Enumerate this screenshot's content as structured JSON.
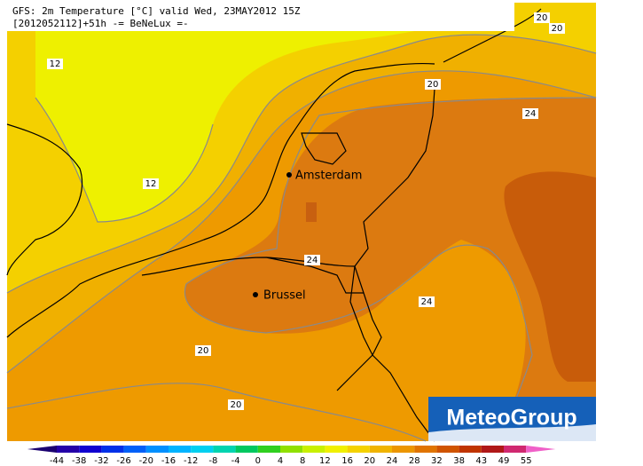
{
  "header": {
    "line1": "GFS: 2m Temperature [°C] valid Wed, 23MAY2012 15Z",
    "line2": "[2012052112]+51h -= BeNeLux =-"
  },
  "contour_labels": [
    12,
    12,
    20,
    24,
    24,
    24,
    20,
    20,
    20,
    20
  ],
  "cities": [
    "Amsterdam",
    "Brussel"
  ],
  "logo": "MeteoGroup",
  "legend": {
    "ticks": [
      -44,
      -38,
      -32,
      -26,
      -20,
      -16,
      -12,
      -8,
      -4,
      0,
      4,
      8,
      12,
      16,
      20,
      24,
      28,
      32,
      38,
      43,
      49,
      55
    ],
    "colors": [
      "#1a0070",
      "#2400a8",
      "#1000d0",
      "#0030e8",
      "#0060f8",
      "#0090ff",
      "#00b4ff",
      "#00d0f0",
      "#00d4b0",
      "#00c860",
      "#30d020",
      "#90e000",
      "#c8f000",
      "#f0f000",
      "#f4d200",
      "#f0b400",
      "#ec9600",
      "#e07400",
      "#d05400",
      "#c03400",
      "#b01818",
      "#d02870",
      "#f060c8"
    ]
  }
}
